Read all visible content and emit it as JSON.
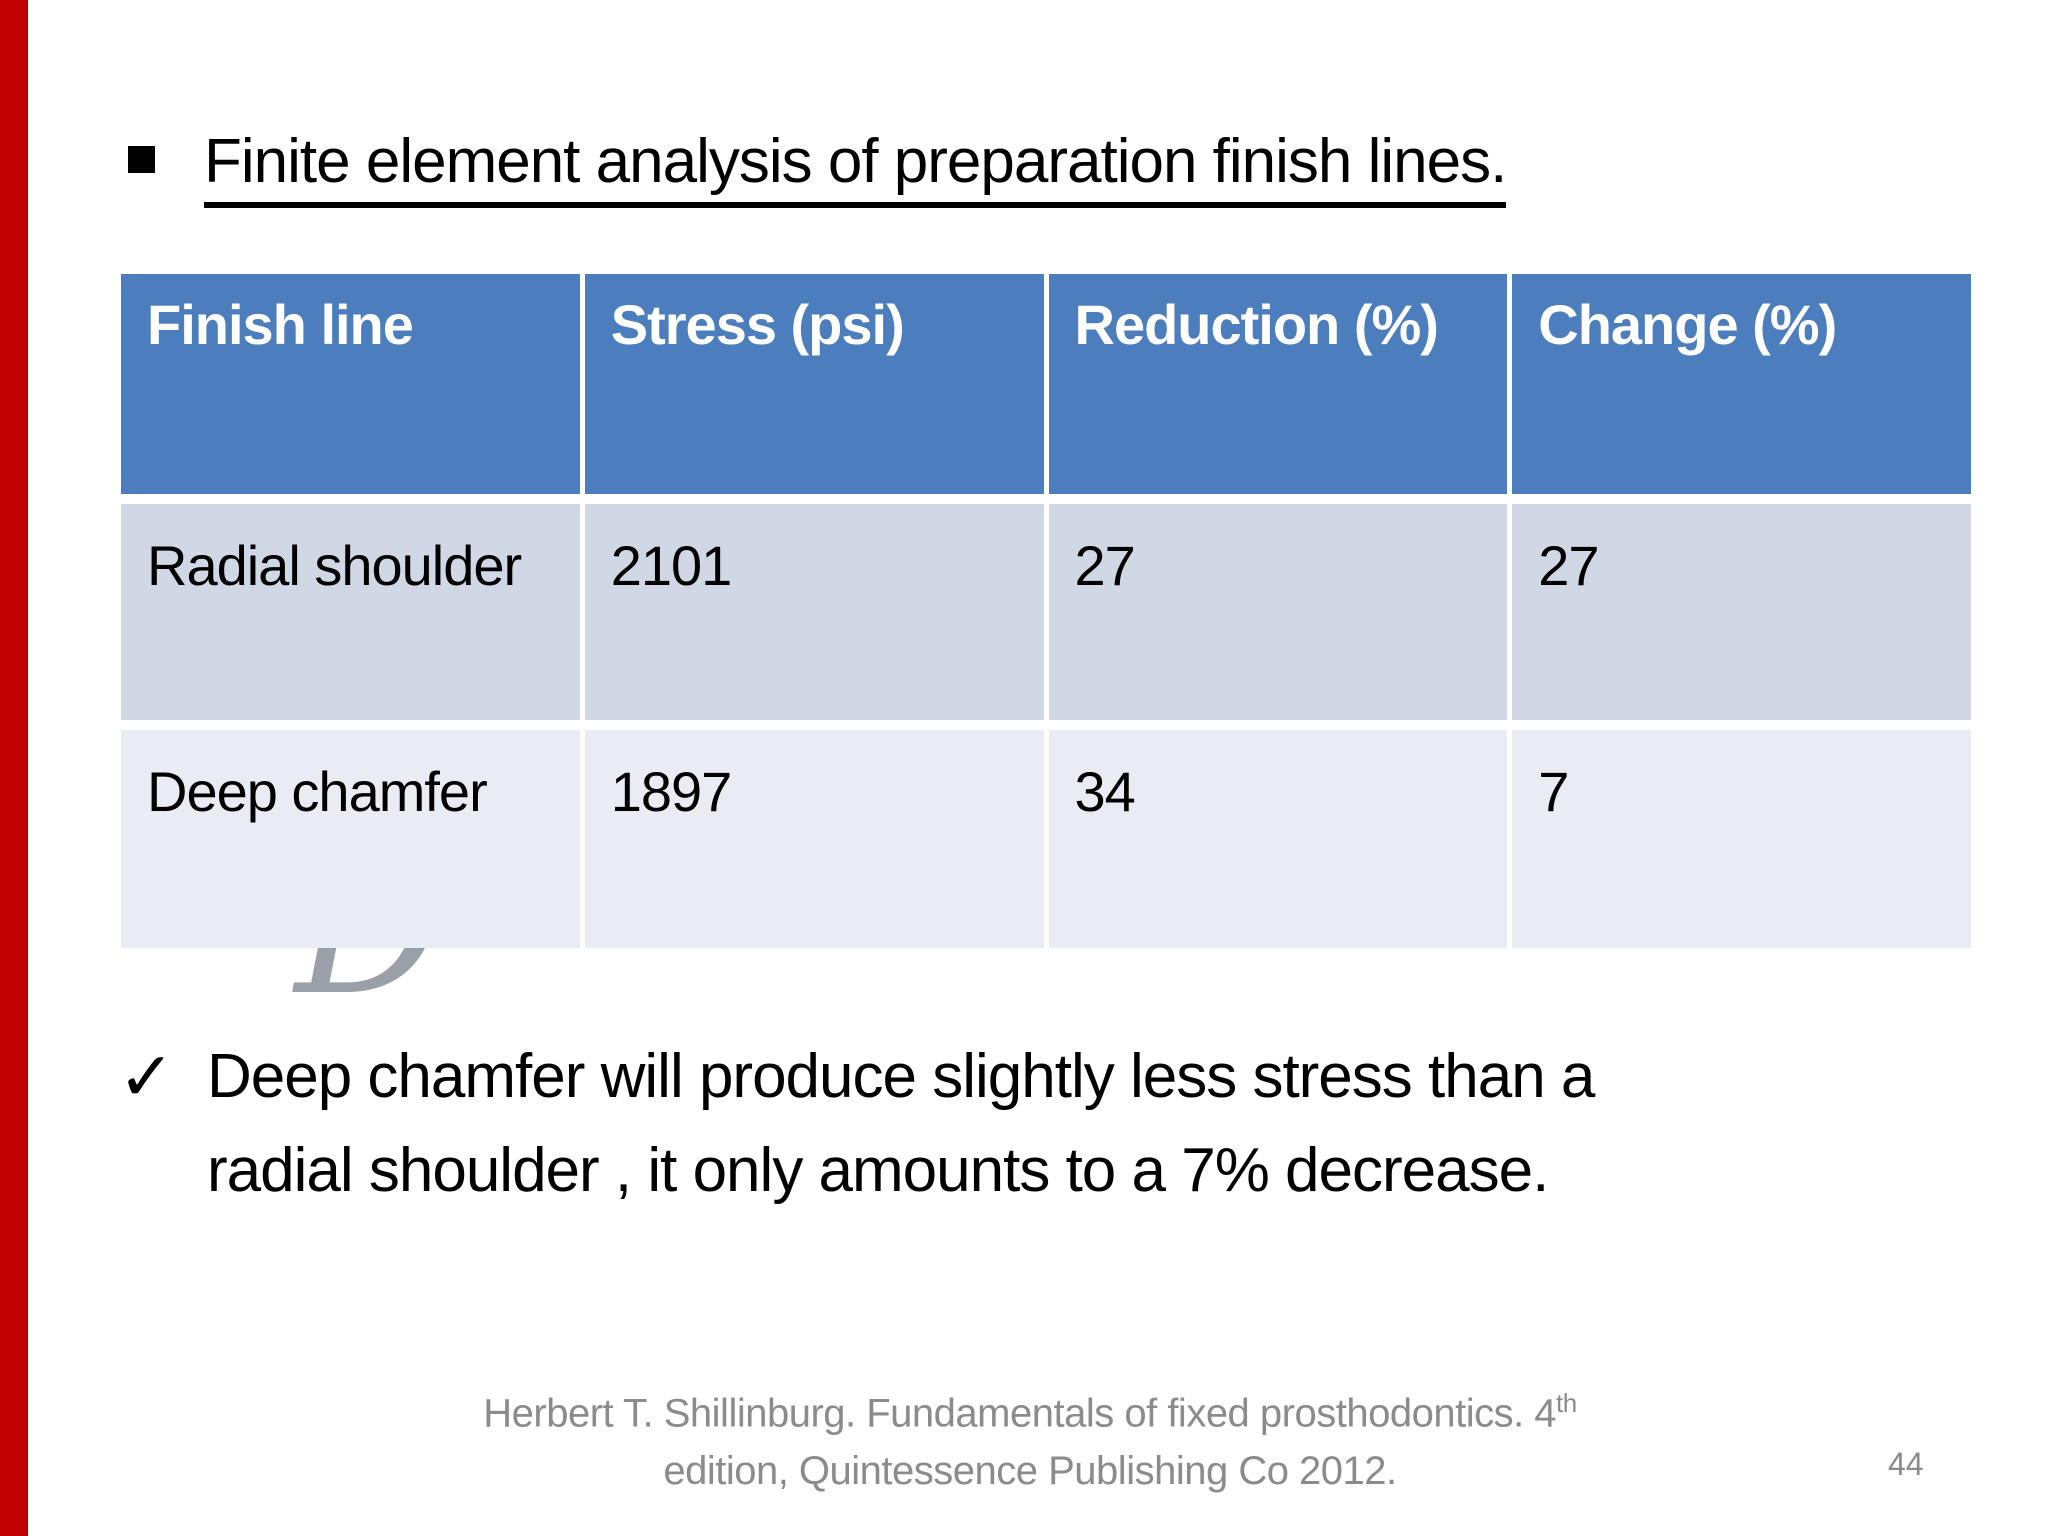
{
  "slide": {
    "accent_bar_color": "#C00000",
    "title": {
      "text": "Finite element analysis of preparation finish lines."
    },
    "table": {
      "header_bg": "#4C7DBC",
      "row_colors": [
        "#D0D7E5",
        "#E9ECF3"
      ],
      "columns": [
        "Finish line",
        "Stress (psi)",
        "Reduction (%)",
        "Change (%)"
      ],
      "rows": [
        [
          "Radial shoulder",
          "2101",
          "27",
          "27"
        ],
        [
          "Deep chamfer",
          "1897",
          "34",
          "7"
        ]
      ]
    },
    "watermark_glyph": "D",
    "note": {
      "check_glyph": "✓",
      "lines": [
        "Deep chamfer will produce slightly less stress than a",
        "radial shoulder , it only amounts to a 7% decrease."
      ]
    },
    "footer": {
      "line1_prefix": "Herbert T. Shillinburg. Fundamentals of fixed prosthodontics. 4",
      "line1_sup": "th",
      "line2": "edition, Quintessence Publishing Co 2012.",
      "page_number": "44"
    }
  }
}
